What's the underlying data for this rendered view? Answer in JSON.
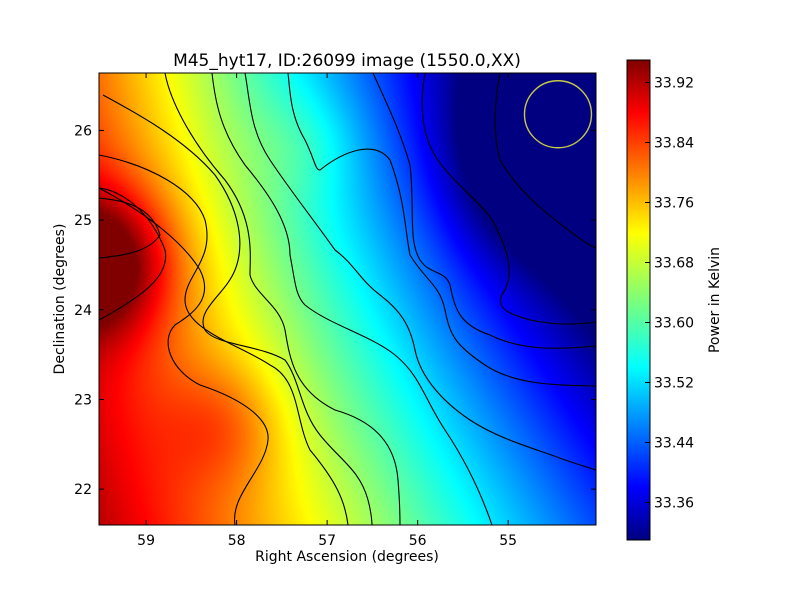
{
  "chart_data": {
    "type": "heatmap",
    "title": "M45_hyt17, ID:26099 image (1550.0,XX)",
    "xlabel": "Right Ascension (degrees)",
    "ylabel": "Declination (degrees)",
    "xlim": [
      59.52,
      54.03
    ],
    "ylim": [
      21.6,
      26.64
    ],
    "x_ticks": [
      59,
      58,
      57,
      56,
      55
    ],
    "y_ticks": [
      22,
      23,
      24,
      25,
      26
    ],
    "x_tick_labels": [
      "59",
      "58",
      "57",
      "56",
      "55"
    ],
    "y_tick_labels": [
      "22",
      "23",
      "24",
      "25",
      "26"
    ],
    "colormap": "jet",
    "colorbar": {
      "label": "Power in Kelvin",
      "min": 33.31,
      "max": 33.95,
      "ticks": [
        33.36,
        33.44,
        33.52,
        33.6,
        33.68,
        33.76,
        33.84,
        33.92
      ],
      "tick_labels": [
        "33.36",
        "33.44",
        "33.52",
        "33.60",
        "33.68",
        "33.76",
        "33.84",
        "33.92"
      ]
    },
    "contours": true,
    "beam_marker": {
      "ra": 54.45,
      "dec": 26.18,
      "radius_deg": 0.37,
      "color": "#c8c84a"
    }
  }
}
